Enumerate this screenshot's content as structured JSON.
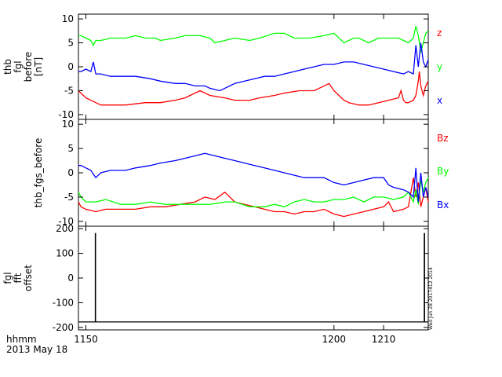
{
  "chart_data": [
    {
      "type": "line",
      "ylabel": [
        "thb",
        "fgl",
        "before",
        "[nT]"
      ],
      "xlim": [
        1148.5,
        1219.0
      ],
      "ylim": [
        -11,
        11
      ],
      "yticks": [
        10,
        5,
        0,
        -5,
        -10
      ],
      "ytick_labels": [
        "10",
        "5",
        "0",
        "-5",
        "-10"
      ],
      "series": [
        {
          "name": "z",
          "color": "#ff0000",
          "x": [
            1148.5,
            1149,
            1150,
            1151,
            1152,
            1153,
            1155,
            1158,
            1162,
            1165,
            1168,
            1170,
            1171,
            1172,
            1173,
            1175,
            1178,
            1180,
            1183,
            1185,
            1188,
            1190,
            1193,
            1196,
            1198,
            1199,
            1200,
            1201,
            1202,
            1203,
            1205,
            1207,
            1209,
            1211,
            1213,
            1213.5,
            1214,
            1214.5,
            1215,
            1216,
            1216.5,
            1217,
            1217.2,
            1217.5,
            1218,
            1218.5,
            1219
          ],
          "y": [
            -5,
            -5.5,
            -6.5,
            -7,
            -7.5,
            -8,
            -8,
            -8,
            -7.5,
            -7.5,
            -7,
            -6.5,
            -6,
            -5.5,
            -5,
            -6,
            -6.5,
            -7,
            -7,
            -6.5,
            -6,
            -5.5,
            -5,
            -5,
            -4,
            -3.5,
            -5,
            -6,
            -7,
            -7.5,
            -8,
            -8,
            -7.5,
            -7,
            -6.5,
            -5,
            -7,
            -7.5,
            -7.5,
            -7,
            -6,
            -3,
            -1,
            -4,
            -6,
            -4,
            -3
          ]
        },
        {
          "name": "y",
          "color": "#00ff00",
          "x": [
            1148.5,
            1149,
            1150,
            1151,
            1151.5,
            1152,
            1153,
            1155,
            1158,
            1160,
            1162,
            1164,
            1165,
            1168,
            1170,
            1173,
            1175,
            1176,
            1178,
            1180,
            1183,
            1185,
            1188,
            1190,
            1192,
            1195,
            1198,
            1200,
            1202,
            1204,
            1205,
            1207,
            1209,
            1211,
            1213,
            1214,
            1215,
            1216,
            1216.5,
            1217,
            1217.5,
            1218,
            1218.5,
            1219
          ],
          "y": [
            6.5,
            6.5,
            6,
            5.5,
            4.5,
            5.5,
            5.5,
            6,
            6,
            6.5,
            6,
            6,
            5.5,
            6,
            6.5,
            6.5,
            6,
            5,
            5.5,
            6,
            5.5,
            6,
            7,
            7,
            6,
            6,
            6.5,
            7,
            5,
            6,
            6,
            5,
            6,
            6,
            6,
            5.5,
            5,
            6,
            8.5,
            6.5,
            3,
            5,
            7,
            7.5
          ]
        },
        {
          "name": "x",
          "color": "#0000ff",
          "x": [
            1148.5,
            1149,
            1150,
            1151,
            1151.5,
            1152,
            1153,
            1155,
            1158,
            1160,
            1163,
            1165,
            1168,
            1170,
            1172,
            1174,
            1175,
            1177,
            1178,
            1180,
            1182,
            1184,
            1186,
            1188,
            1190,
            1192,
            1194,
            1196,
            1198,
            1200,
            1202,
            1204,
            1206,
            1208,
            1210,
            1212,
            1214,
            1215,
            1216,
            1216.5,
            1217,
            1217.5,
            1218,
            1218.5,
            1219
          ],
          "y": [
            -1,
            -1,
            -0.5,
            -1,
            1,
            -1.5,
            -1.5,
            -2,
            -2,
            -2,
            -2.5,
            -3,
            -3.5,
            -3.5,
            -4,
            -4,
            -4.5,
            -5,
            -4.5,
            -3.5,
            -3,
            -2.5,
            -2,
            -2,
            -1.5,
            -1,
            -0.5,
            0,
            0.5,
            0.5,
            1,
            1,
            0.5,
            0,
            -0.5,
            -1,
            -1.5,
            -1,
            -1.5,
            4.5,
            0,
            5,
            1,
            0,
            1.5
          ]
        }
      ]
    },
    {
      "type": "line",
      "ylabel": [
        "thb_fgs_before"
      ],
      "xlim": [
        1148.5,
        1219.0
      ],
      "ylim": [
        -11,
        11
      ],
      "yticks": [
        10,
        5,
        0,
        -5,
        -10
      ],
      "ytick_labels": [
        "10",
        "5",
        "0",
        "-5",
        "-10"
      ],
      "series": [
        {
          "name": "Bz",
          "color": "#ff0000",
          "x": [
            1148.5,
            1149,
            1150,
            1152,
            1154,
            1157,
            1160,
            1163,
            1166,
            1169,
            1172,
            1174,
            1176,
            1178,
            1180,
            1182,
            1184,
            1186,
            1188,
            1190,
            1192,
            1194,
            1196,
            1198,
            1200,
            1202,
            1204,
            1206,
            1208,
            1210,
            1211,
            1212,
            1214,
            1215,
            1216,
            1216.5,
            1217,
            1217.5,
            1218,
            1218.5,
            1219
          ],
          "y": [
            -6,
            -7,
            -7.5,
            -8,
            -7.5,
            -7.5,
            -7.5,
            -7,
            -7,
            -6.5,
            -6,
            -5,
            -5.5,
            -4,
            -6,
            -6.5,
            -7,
            -7.5,
            -8,
            -8,
            -8.5,
            -8,
            -8,
            -7.5,
            -8.5,
            -9,
            -8.5,
            -8,
            -7.5,
            -7,
            -6,
            -8,
            -7.5,
            -7,
            -1,
            -5,
            -2,
            -7,
            -5,
            -3,
            -6
          ]
        },
        {
          "name": "By",
          "color": "#00ff00",
          "x": [
            1148.5,
            1149,
            1150,
            1152,
            1154,
            1157,
            1160,
            1163,
            1166,
            1169,
            1172,
            1175,
            1178,
            1180,
            1183,
            1186,
            1188,
            1190,
            1192,
            1194,
            1196,
            1198,
            1200,
            1202,
            1204,
            1206,
            1208,
            1210,
            1212,
            1214,
            1215,
            1216,
            1216.5,
            1217,
            1217.5,
            1218,
            1218.5,
            1219
          ],
          "y": [
            -4,
            -5,
            -6,
            -6,
            -5.5,
            -6.5,
            -6.5,
            -6,
            -6.5,
            -6.5,
            -6.5,
            -6.5,
            -6,
            -6,
            -7,
            -7,
            -6.5,
            -7,
            -6,
            -5.5,
            -6,
            -6,
            -5.5,
            -5.5,
            -5,
            -6,
            -5,
            -5,
            -5.5,
            -5,
            -4,
            -6,
            -3.5,
            -6.5,
            -1.5,
            -4,
            -2,
            -1
          ]
        },
        {
          "name": "Bx",
          "color": "#0000ff",
          "x": [
            1148.5,
            1149,
            1150,
            1151,
            1152,
            1153,
            1155,
            1158,
            1160,
            1163,
            1165,
            1168,
            1170,
            1172,
            1174,
            1176,
            1178,
            1180,
            1182,
            1184,
            1186,
            1188,
            1190,
            1192,
            1194,
            1196,
            1198,
            1200,
            1202,
            1204,
            1206,
            1208,
            1210,
            1211,
            1212,
            1214,
            1215,
            1216,
            1216.5,
            1217,
            1217.5,
            1218,
            1218.5,
            1219
          ],
          "y": [
            1.5,
            1.5,
            1,
            0.5,
            -1,
            0,
            0.5,
            0.5,
            1,
            1.5,
            2,
            2.5,
            3,
            3.5,
            4,
            3.5,
            3,
            2.5,
            2,
            1.5,
            1,
            0.5,
            0,
            -0.5,
            -1,
            -1,
            -1,
            -2,
            -2.5,
            -2,
            -1.5,
            -1,
            -1,
            -2.5,
            -3,
            -3.5,
            -4,
            -5,
            1,
            -6,
            0,
            -5,
            -3,
            -5
          ]
        }
      ]
    },
    {
      "type": "line",
      "ylabel": [
        "fgl",
        "fft",
        "offset"
      ],
      "xlim": [
        1148.5,
        1219.0
      ],
      "ylim": [
        -210,
        210
      ],
      "yticks": [
        200,
        100,
        0,
        -100,
        -200
      ],
      "ytick_labels": [
        "200",
        "100",
        "0",
        "-100",
        "-200"
      ],
      "series": [
        {
          "name": "",
          "color": "#000000",
          "x": [
            1148.5,
            1151.9,
            1151.9,
            1151.95,
            1151.95,
            1165,
            1180,
            1195,
            1210,
            1218.2,
            1218.2,
            1218.25,
            1218.25,
            1219
          ],
          "y": [
            -178,
            -178,
            180,
            180,
            -178,
            -178,
            -178,
            -178,
            -178,
            -178,
            180,
            180,
            -178,
            -178
          ]
        }
      ]
    }
  ],
  "x_axis": {
    "ticks": [
      1150,
      1200,
      1210
    ],
    "tick_labels": [
      "1150",
      "1200",
      "1210"
    ],
    "label": "hhmm",
    "date": "2013 May 18"
  },
  "timestamp": "Wed Jun 28 2017412 2014",
  "colors": {
    "z": "#ff0000",
    "y": "#00ff00",
    "x": "#0000ff"
  }
}
